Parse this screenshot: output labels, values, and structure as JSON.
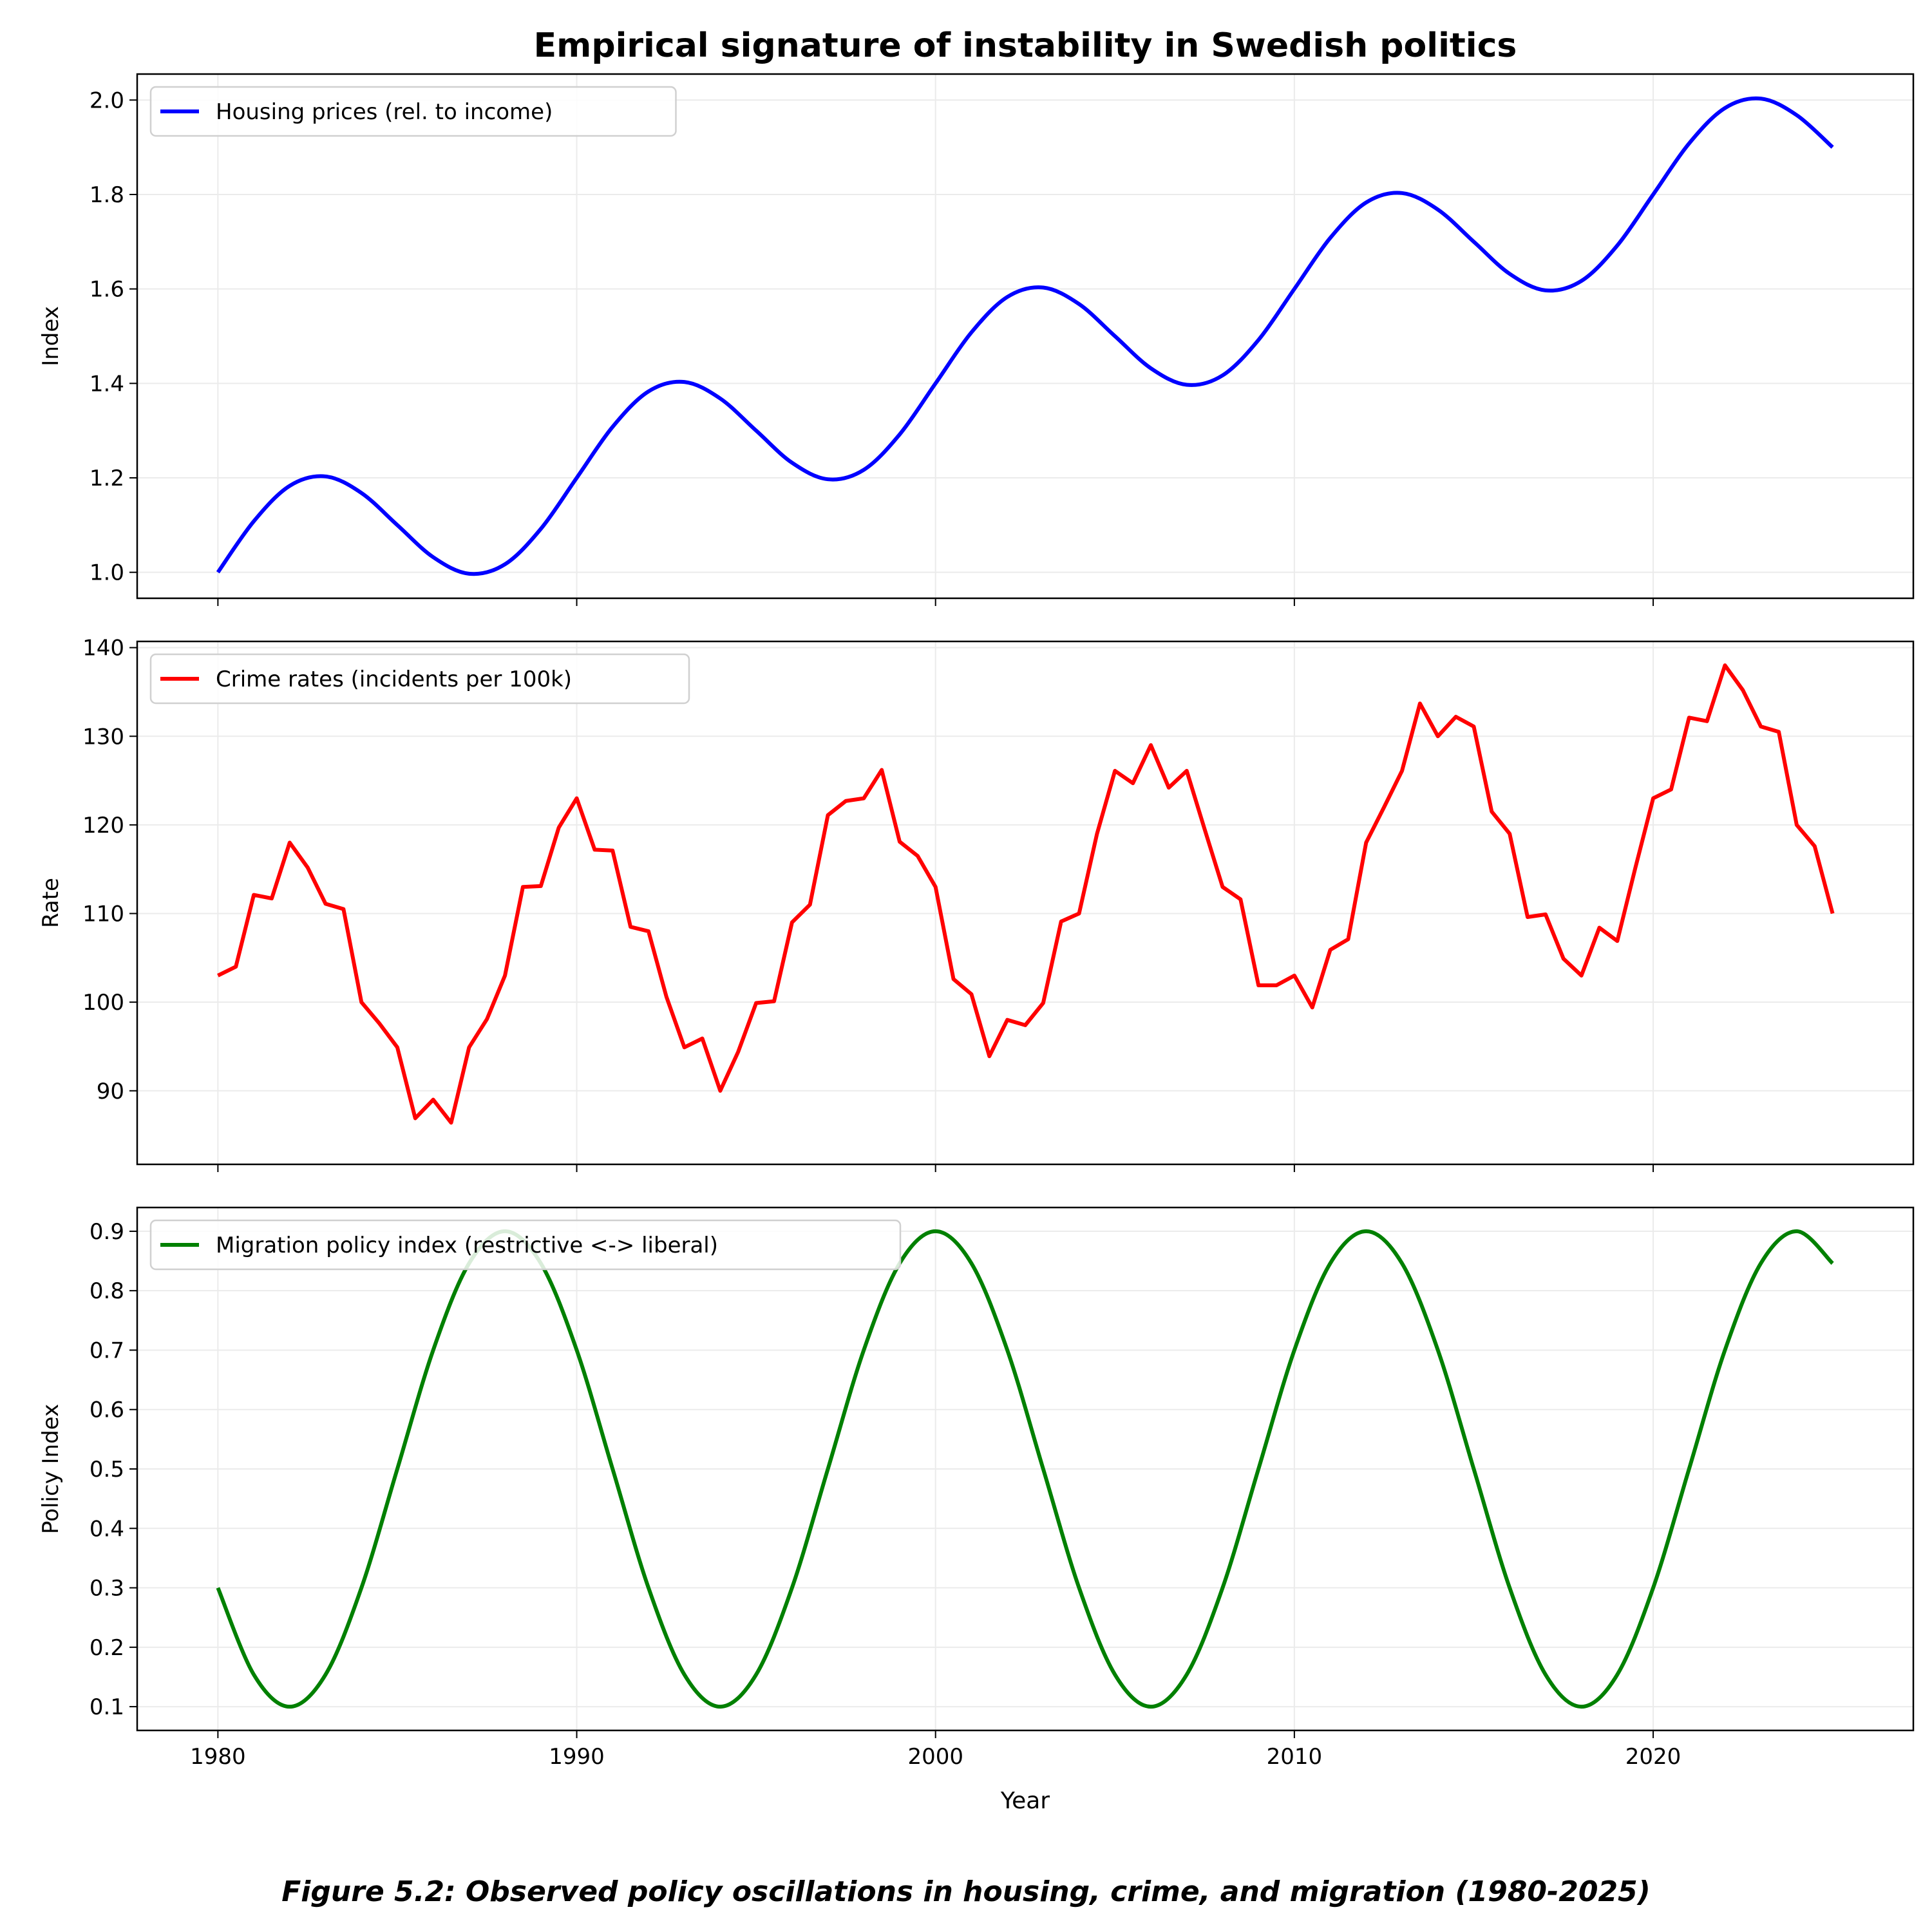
{
  "chart_data": {
    "title": "Empirical signature of instability in Swedish politics",
    "caption": "Figure 5.2: Observed policy oscillations in housing, crime, and migration (1980-2025)",
    "xlabel": "Year",
    "shared_x": true,
    "xlim": [
      1977.75,
      2027.25
    ],
    "xticks": [
      1980,
      1990,
      2000,
      2010,
      2020
    ],
    "grid": true,
    "panels": [
      {
        "type": "line",
        "ylabel": "Index",
        "ylim": [
          0.945,
          2.055
        ],
        "yticks": [
          1.0,
          1.2,
          1.4,
          1.6,
          1.8,
          2.0
        ],
        "ytick_labels": [
          "1.0",
          "1.2",
          "1.4",
          "1.6",
          "1.8",
          "2.0"
        ],
        "legend": "upper-left",
        "series": [
          {
            "name": "Housing prices (rel. to income)",
            "color": "#0000ff",
            "x_start": 1980,
            "x_step": 1,
            "values": [
              1.0,
              1.108,
              1.183,
              1.203,
              1.168,
              1.1,
              1.032,
              0.997,
              1.017,
              1.092,
              1.2,
              1.308,
              1.383,
              1.403,
              1.368,
              1.3,
              1.232,
              1.197,
              1.217,
              1.292,
              1.4,
              1.508,
              1.583,
              1.603,
              1.568,
              1.5,
              1.432,
              1.397,
              1.417,
              1.492,
              1.6,
              1.708,
              1.783,
              1.803,
              1.768,
              1.7,
              1.632,
              1.597,
              1.617,
              1.692,
              1.8,
              1.908,
              1.983,
              2.003,
              1.968,
              1.9
            ]
          }
        ]
      },
      {
        "type": "line",
        "ylabel": "Rate",
        "ylim": [
          81.7,
          140.7
        ],
        "yticks": [
          90,
          100,
          110,
          120,
          130,
          140
        ],
        "ytick_labels": [
          "90",
          "100",
          "110",
          "120",
          "130",
          "140"
        ],
        "legend": "upper-left",
        "series": [
          {
            "name": "Crime rates (incidents per 100k)",
            "color": "#ff0000",
            "x_start": 1980,
            "x_step": 0.5,
            "values": [
              103.0,
              104.0,
              112.1,
              111.7,
              118.0,
              115.2,
              111.1,
              110.5,
              100.0,
              97.6,
              94.9,
              86.9,
              89.0,
              86.4,
              94.9,
              98.1,
              103.0,
              113.0,
              113.1,
              119.7,
              123.0,
              117.2,
              117.1,
              108.5,
              108.0,
              100.6,
              94.9,
              95.9,
              90.0,
              94.4,
              99.9,
              100.1,
              109.0,
              111.0,
              121.1,
              122.7,
              123.0,
              126.2,
              118.1,
              116.5,
              113.0,
              102.6,
              100.9,
              93.9,
              98.0,
              97.4,
              99.9,
              109.1,
              110.0,
              119.0,
              126.1,
              124.7,
              129.0,
              124.2,
              126.1,
              119.5,
              113.0,
              111.6,
              101.9,
              101.9,
              103.0,
              99.4,
              105.9,
              107.1,
              118.0,
              122.0,
              126.1,
              133.7,
              130.0,
              132.2,
              131.1,
              121.5,
              119.0,
              109.6,
              109.9,
              104.9,
              103.0,
              108.4,
              106.9,
              115.1,
              123.0,
              124.0,
              132.1,
              131.7,
              138.0,
              135.2,
              131.1,
              130.5,
              120.0,
              117.6,
              110.0
            ]
          }
        ]
      },
      {
        "type": "line",
        "ylabel": "Policy Index",
        "ylim": [
          0.06,
          0.94
        ],
        "yticks": [
          0.1,
          0.2,
          0.3,
          0.4,
          0.5,
          0.6,
          0.7,
          0.8,
          0.9
        ],
        "ytick_labels": [
          "0.1",
          "0.2",
          "0.3",
          "0.4",
          "0.5",
          "0.6",
          "0.7",
          "0.8",
          "0.9"
        ],
        "legend": "upper-left",
        "series": [
          {
            "name": "Migration policy index (restrictive <-> liberal)",
            "color": "#008000",
            "x_start": 1980,
            "x_step": 1,
            "values": [
              0.3,
              0.154,
              0.1,
              0.154,
              0.3,
              0.5,
              0.7,
              0.846,
              0.9,
              0.846,
              0.7,
              0.5,
              0.3,
              0.154,
              0.1,
              0.154,
              0.3,
              0.5,
              0.7,
              0.846,
              0.9,
              0.846,
              0.7,
              0.5,
              0.3,
              0.154,
              0.1,
              0.154,
              0.3,
              0.5,
              0.7,
              0.846,
              0.9,
              0.846,
              0.7,
              0.5,
              0.3,
              0.154,
              0.1,
              0.154,
              0.3,
              0.5,
              0.7,
              0.846,
              0.9,
              0.846
            ]
          }
        ]
      }
    ]
  }
}
